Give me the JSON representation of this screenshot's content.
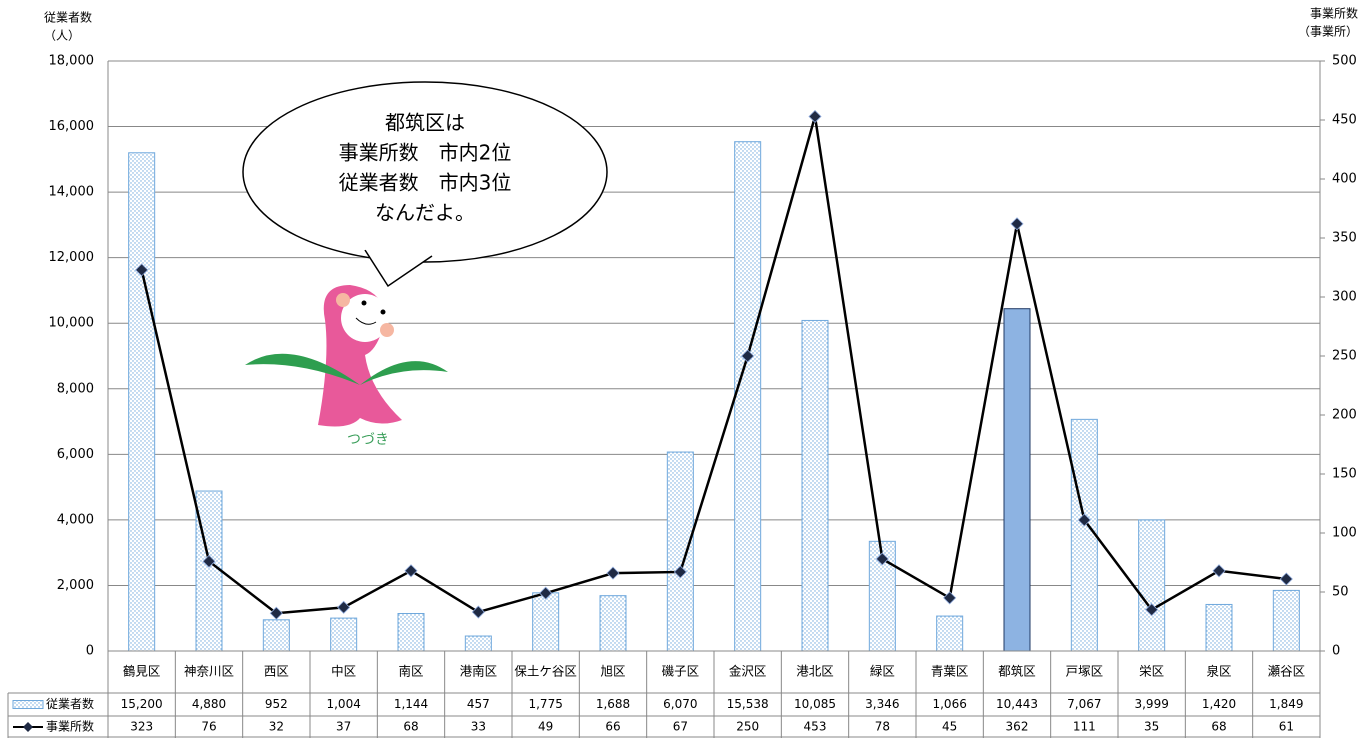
{
  "chart_data": {
    "type": "bar_line",
    "y_label": [
      "従業者数",
      "（人）"
    ],
    "y2_label": [
      "事業所数",
      "（事業所）"
    ],
    "annotation": [
      "都筑区は",
      "事業所数　市内2位",
      "従業者数　市内3位",
      "なんだよ。"
    ],
    "mascot_label": "つづき",
    "categories": [
      "鶴見区",
      "神奈川区",
      "西区",
      "中区",
      "南区",
      "港南区",
      "保土ケ谷区",
      "旭区",
      "磯子区",
      "金沢区",
      "港北区",
      "緑区",
      "青葉区",
      "都筑区",
      "戸塚区",
      "栄区",
      "泉区",
      "瀬谷区"
    ],
    "series": [
      {
        "name": "従業者数",
        "type": "bar",
        "color": "#9dc3e6",
        "colors": [
          "#9dc3e6",
          "#9dc3e6",
          "#9dc3e6",
          "#9dc3e6",
          "#9dc3e6",
          "#9dc3e6",
          "#9dc3e6",
          "#9dc3e6",
          "#9dc3e6",
          "#9dc3e6",
          "#9dc3e6",
          "#9dc3e6",
          "#9dc3e6",
          "#8db3e2",
          "#9dc3e6",
          "#9dc3e6",
          "#9dc3e6",
          "#9dc3e6"
        ],
        "values": [
          15200,
          4880,
          952,
          1004,
          1144,
          457,
          1775,
          1688,
          6070,
          15538,
          10085,
          3346,
          1066,
          10443,
          7067,
          3999,
          1420,
          1849
        ],
        "value_labels": [
          "15,200",
          "4,880",
          "952",
          "1,004",
          "1,144",
          "457",
          "1,775",
          "1,688",
          "6,070",
          "15,538",
          "10,085",
          "3,346",
          "1,066",
          "10,443",
          "7,067",
          "3,999",
          "1,420",
          "1,849"
        ]
      },
      {
        "name": "事業所数",
        "type": "line",
        "axis": "y2",
        "color": "#000000",
        "marker_color": "#1f2a44",
        "values": [
          323,
          76,
          32,
          37,
          68,
          33,
          49,
          66,
          67,
          250,
          453,
          78,
          45,
          362,
          111,
          35,
          68,
          61
        ]
      }
    ],
    "ylim": [
      0,
      18000
    ],
    "yticks": [
      0,
      {
        "value": 2000,
        "label": "2,000"
      },
      {
        "value": 4000,
        "label": "4,000"
      },
      {
        "value": 6000,
        "label": "6,000"
      },
      {
        "value": 8000,
        "label": "8,000"
      },
      {
        "value": 10000,
        "label": "10,000"
      },
      {
        "value": 12000,
        "label": "12,000"
      },
      {
        "value": 14000,
        "label": "14,000"
      },
      {
        "value": 16000,
        "label": "16,000"
      },
      {
        "value": 18000,
        "label": "18,000"
      }
    ],
    "y2lim": [
      0,
      500
    ],
    "y2ticks": [
      0,
      50,
      100,
      150,
      200,
      250,
      300,
      350,
      400,
      450,
      500
    ],
    "grid": true
  }
}
